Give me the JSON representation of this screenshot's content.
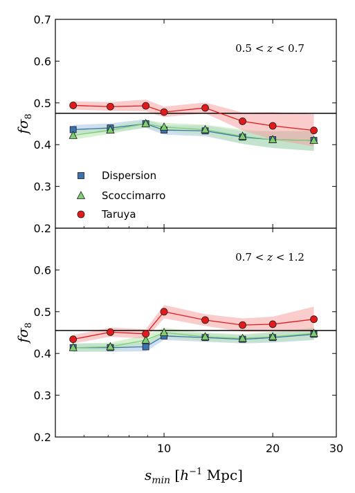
{
  "chart_data": [
    {
      "type": "line",
      "annotation": "0.5 < z < 0.7",
      "ylabel": "fσ8",
      "yticks": [
        "0.2",
        "0.3",
        "0.4",
        "0.5",
        "0.6",
        "0.7"
      ],
      "ylim": [
        0.2,
        0.7
      ],
      "xscale": "log",
      "x": [
        5.6,
        7.1,
        8.9,
        10.0,
        13.0,
        16.5,
        20.0,
        26.0
      ],
      "reference_line": 0.475,
      "grid": false,
      "legend_position": "center-left",
      "series": [
        {
          "name": "Dispersion",
          "marker": "square",
          "color": "#3b72b0",
          "band_color": "#a9c4e4",
          "values": [
            0.436,
            0.44,
            0.45,
            0.435,
            0.433,
            0.418,
            0.412,
            0.41
          ],
          "band_lower": [
            0.425,
            0.43,
            0.44,
            0.424,
            0.42,
            0.402,
            0.392,
            0.385
          ],
          "band_upper": [
            0.447,
            0.451,
            0.461,
            0.446,
            0.446,
            0.432,
            0.432,
            0.433
          ]
        },
        {
          "name": "Scoccimarro",
          "marker": "triangle",
          "color": "#7fcf72",
          "band_color": "#b8e6ae",
          "values": [
            0.422,
            0.435,
            0.45,
            0.442,
            0.436,
            0.42,
            0.412,
            0.41
          ],
          "band_lower": [
            0.412,
            0.426,
            0.441,
            0.432,
            0.424,
            0.402,
            0.392,
            0.385
          ],
          "band_upper": [
            0.432,
            0.445,
            0.459,
            0.452,
            0.448,
            0.436,
            0.432,
            0.433
          ]
        },
        {
          "name": "Taruya",
          "marker": "circle",
          "color": "#e31a1c",
          "band_color": "#f5a3a3",
          "values": [
            0.494,
            0.491,
            0.493,
            0.478,
            0.488,
            0.456,
            0.445,
            0.434
          ],
          "band_lower": [
            0.484,
            0.481,
            0.48,
            0.466,
            0.475,
            0.434,
            0.412,
            0.396
          ],
          "band_upper": [
            0.504,
            0.502,
            0.508,
            0.491,
            0.501,
            0.477,
            0.478,
            0.473
          ]
        }
      ]
    },
    {
      "type": "line",
      "annotation": "0.7 < z < 1.2",
      "ylabel": "fσ8",
      "yticks": [
        "0.2",
        "0.3",
        "0.4",
        "0.5",
        "0.6"
      ],
      "ylim": [
        0.2,
        0.7
      ],
      "xscale": "log",
      "x": [
        5.6,
        7.1,
        8.9,
        10.0,
        13.0,
        16.5,
        20.0,
        26.0
      ],
      "xlim": [
        5.0,
        30.0
      ],
      "xticks": [
        "10",
        "20",
        "30"
      ],
      "xlabel": "s_min [h^-1 Mpc]",
      "reference_line": 0.455,
      "grid": false,
      "series": [
        {
          "name": "Dispersion",
          "marker": "square",
          "color": "#3b72b0",
          "band_color": "#a9c4e4",
          "values": [
            0.414,
            0.414,
            0.416,
            0.442,
            0.438,
            0.434,
            0.438,
            0.446
          ],
          "band_lower": [
            0.404,
            0.404,
            0.405,
            0.432,
            0.428,
            0.424,
            0.426,
            0.432
          ],
          "band_upper": [
            0.424,
            0.424,
            0.427,
            0.452,
            0.448,
            0.444,
            0.45,
            0.46
          ]
        },
        {
          "name": "Scoccimarro",
          "marker": "triangle",
          "color": "#7fcf72",
          "band_color": "#b8e6ae",
          "values": [
            0.414,
            0.416,
            0.432,
            0.45,
            0.44,
            0.436,
            0.44,
            0.448
          ],
          "band_lower": [
            0.404,
            0.406,
            0.42,
            0.438,
            0.43,
            0.426,
            0.428,
            0.434
          ],
          "band_upper": [
            0.424,
            0.426,
            0.444,
            0.462,
            0.45,
            0.446,
            0.452,
            0.462
          ]
        },
        {
          "name": "Taruya",
          "marker": "circle",
          "color": "#e31a1c",
          "band_color": "#f5a3a3",
          "values": [
            0.434,
            0.451,
            0.447,
            0.5,
            0.48,
            0.468,
            0.47,
            0.482
          ],
          "band_lower": [
            0.424,
            0.44,
            0.436,
            0.484,
            0.466,
            0.452,
            0.452,
            0.452
          ],
          "band_upper": [
            0.444,
            0.462,
            0.458,
            0.516,
            0.494,
            0.484,
            0.488,
            0.512
          ]
        }
      ]
    }
  ]
}
